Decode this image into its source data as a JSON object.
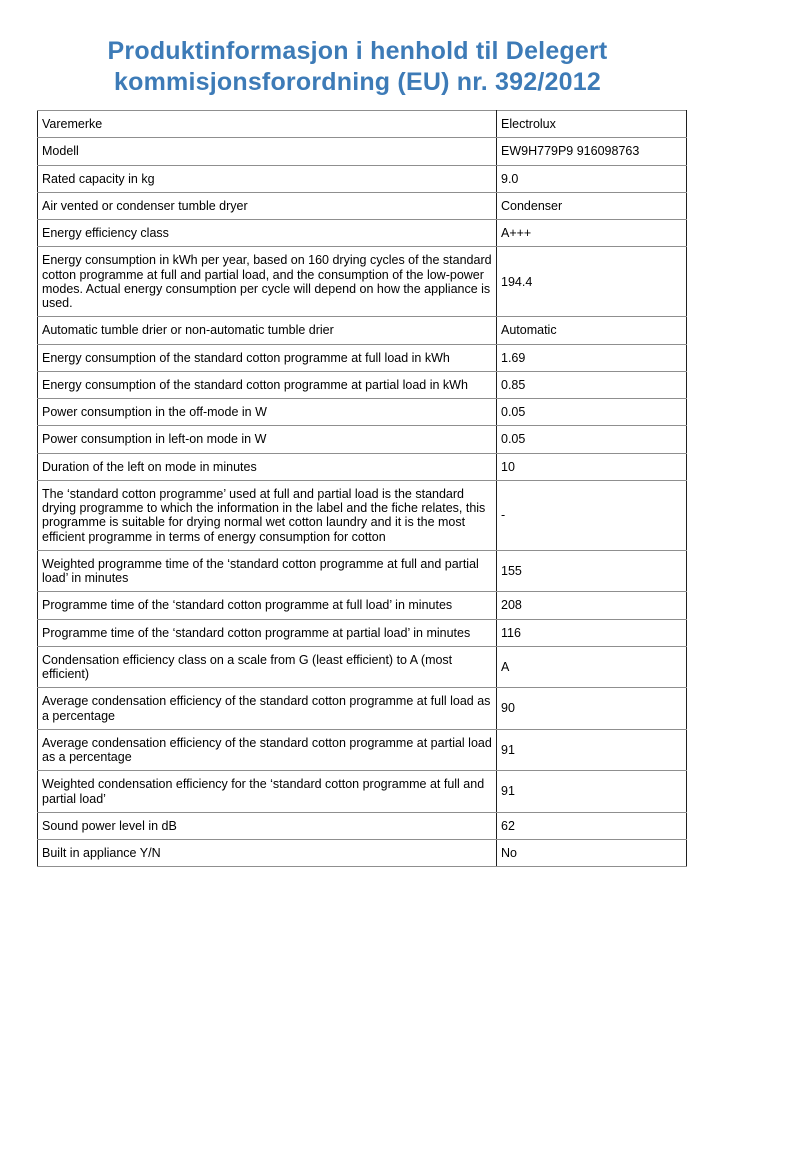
{
  "page": {
    "title": "Produktinformasjon i henhold til Delegert kommisjonsforordning (EU) nr. 392/2012",
    "title_color": "#3d7bb7",
    "text_color": "#000000",
    "background_color": "#ffffff"
  },
  "table": {
    "rows": [
      {
        "label": "Varemerke",
        "value": "Electrolux"
      },
      {
        "label": "Modell",
        "value": "EW9H779P9 916098763"
      },
      {
        "label": "Rated capacity in kg",
        "value": "9.0"
      },
      {
        "label": "Air vented or condenser tumble dryer",
        "value": "Condenser"
      },
      {
        "label": "Energy efficiency class",
        "value": "A+++"
      },
      {
        "label": "Energy consumption in kWh per year, based on 160 drying cycles of the standard cotton programme at full and partial load, and the consumption of the low-power modes. Actual energy consumption per cycle will depend on how the appliance is used.",
        "value": "194.4"
      },
      {
        "label": "Automatic tumble drier or non-automatic tumble drier",
        "value": "Automatic"
      },
      {
        "label": "Energy consumption of the standard cotton programme at full load in kWh",
        "value": "1.69"
      },
      {
        "label": "Energy consumption of the standard cotton programme at partial load in kWh",
        "value": "0.85"
      },
      {
        "label": "Power consumption in the off-mode in W",
        "value": "0.05"
      },
      {
        "label": "Power consumption in left-on mode in W",
        "value": "0.05"
      },
      {
        "label": "Duration of the left on mode in minutes",
        "value": "10"
      },
      {
        "label": "The ‘standard cotton programme’ used at full and partial load is the standard drying programme to which the information in the label and the fiche relates, this programme is suitable for drying normal wet cotton laundry and it is the most efficient programme in terms of energy consumption for cotton",
        "value": "-"
      },
      {
        "label": "Weighted programme time of the ‘standard cotton programme at full and partial load’ in minutes",
        "value": "155"
      },
      {
        "label": "Programme time of the ‘standard cotton programme at full load’ in minutes",
        "value": "208"
      },
      {
        "label": "Programme time of the ‘standard cotton programme at partial load’ in minutes",
        "value": "116"
      },
      {
        "label": "Condensation efficiency class on a scale from G (least efficient) to A (most efficient)",
        "value": "A"
      },
      {
        "label": "Average condensation efficiency of the standard cotton programme at full load as a percentage",
        "value": "90"
      },
      {
        "label": "Average condensation efficiency of the standard cotton programme at partial load as a percentage",
        "value": "91"
      },
      {
        "label": "Weighted condensation efficiency for the ‘standard cotton programme at full and partial load’",
        "value": "91"
      },
      {
        "label": "Sound power level in dB",
        "value": "62"
      },
      {
        "label": "Built in appliance Y/N",
        "value": "No"
      }
    ]
  }
}
